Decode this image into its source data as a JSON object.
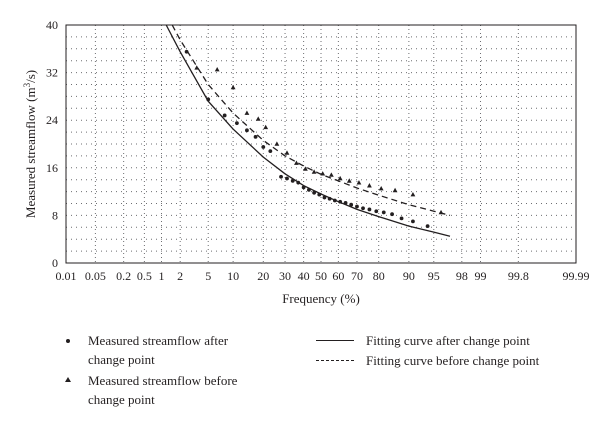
{
  "chart_data": {
    "type": "scatter",
    "xlabel": "Frequency (%)",
    "ylabel": "Measured streamflow (m³/s)",
    "ylabel_parts": {
      "pre": "Measured streamflow (m",
      "sup": "3",
      "post": "/s)"
    },
    "ylim": [
      0,
      40
    ],
    "x_scale": "normal-probability",
    "x_ticks": [
      0.01,
      0.05,
      0.2,
      0.5,
      1,
      2,
      5,
      10,
      20,
      30,
      40,
      50,
      60,
      70,
      80,
      90,
      95,
      98,
      99,
      99.8,
      99.99
    ],
    "x_tick_labels": [
      "0.01",
      "0.05",
      "0.2",
      "0.5",
      "1",
      "2",
      "5",
      "10",
      "20",
      "30",
      "40",
      "50",
      "60",
      "70",
      "80",
      "90",
      "95",
      "98",
      "99",
      "99.8",
      "99.99"
    ],
    "y_ticks": [
      0,
      8,
      16,
      24,
      32,
      40
    ],
    "y_tick_labels": [
      "0",
      "8",
      "16",
      "24",
      "32",
      "40"
    ],
    "grid": "dotted",
    "series": [
      {
        "name": "Measured streamflow after change point",
        "kind": "points",
        "marker": "dot",
        "x": [
          2.5,
          5,
          8,
          11,
          14,
          17,
          20,
          23,
          28,
          31,
          34,
          37,
          40,
          43,
          46,
          49,
          52,
          55,
          58,
          61,
          64,
          67,
          70,
          73,
          76,
          79,
          82,
          85,
          88,
          91,
          94
        ],
        "y": [
          35.5,
          27.5,
          24.8,
          23.5,
          22.3,
          21.2,
          19.5,
          18.8,
          14.5,
          14.2,
          13.8,
          13.5,
          12.7,
          12.3,
          11.8,
          11.5,
          11.0,
          10.8,
          10.5,
          10.3,
          10.1,
          9.8,
          9.5,
          9.2,
          9.0,
          8.7,
          8.5,
          8.2,
          7.5,
          7.0,
          6.2
        ]
      },
      {
        "name": "Measured streamflow before change point",
        "kind": "points",
        "marker": "triangle",
        "x": [
          3.5,
          6.5,
          10,
          14,
          18,
          21,
          26,
          31,
          36,
          41,
          46,
          51,
          56,
          61,
          66,
          71,
          76,
          81,
          86,
          91,
          96
        ],
        "y": [
          32.8,
          32.5,
          29.5,
          25.2,
          24.2,
          22.8,
          20.0,
          18.5,
          16.8,
          15.8,
          15.3,
          15.0,
          14.8,
          14.2,
          13.8,
          13.5,
          13.0,
          12.5,
          12.2,
          11.5,
          8.5
        ]
      },
      {
        "name": "Fitting curve after change point",
        "kind": "line",
        "style": "solid",
        "x": [
          1.2,
          2,
          5,
          10,
          20,
          30,
          40,
          50,
          60,
          70,
          80,
          90,
          95,
          97
        ],
        "y": [
          40,
          35.5,
          27.2,
          22.5,
          17.8,
          15.0,
          13.0,
          11.6,
          10.3,
          9.0,
          7.8,
          6.2,
          5.2,
          4.5
        ]
      },
      {
        "name": "Fitting curve before change point",
        "kind": "line",
        "style": "dashed",
        "x": [
          1.5,
          2,
          5,
          10,
          20,
          30,
          40,
          50,
          60,
          70,
          80,
          90,
          95,
          97
        ],
        "y": [
          40,
          37.5,
          30.0,
          25.2,
          20.6,
          18.0,
          16.3,
          14.9,
          13.8,
          12.6,
          11.4,
          9.8,
          8.7,
          8.0
        ]
      }
    ]
  },
  "legend": {
    "after_points": "Measured streamflow after\nchange point",
    "before_points": "Measured streamflow before\nchange point",
    "after_curve": "Fitting curve after change point",
    "before_curve": "Fitting curve before change point"
  }
}
